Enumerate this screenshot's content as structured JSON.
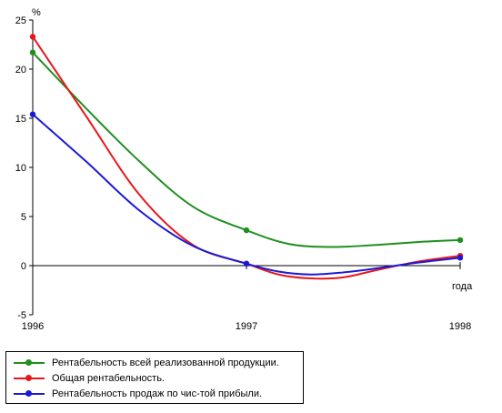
{
  "chart_data": {
    "type": "line",
    "title": "",
    "xlabel": "года",
    "ylabel": "%",
    "x": [
      "1996",
      "1997",
      "1998"
    ],
    "ylim": [
      -5,
      25
    ],
    "yticks": [
      "-5",
      "0",
      "5",
      "10",
      "15",
      "20",
      "25"
    ],
    "grid": false,
    "legend_position": "bottom-left",
    "series": [
      {
        "name": "Рентабельность всей реализованной продукции.",
        "color": "#1f8f1f",
        "values": [
          21.7,
          3.6,
          2.6
        ],
        "curve_x": [
          1996,
          1996.25,
          1996.5,
          1996.75,
          1997,
          1997.2,
          1997.4,
          1997.6,
          1997.8,
          1998
        ],
        "curve_y": [
          21.7,
          16.0,
          10.6,
          6.0,
          3.6,
          2.2,
          1.9,
          2.1,
          2.4,
          2.6
        ]
      },
      {
        "name": "Общая рентабельность.",
        "color": "#e8161b",
        "values": [
          23.3,
          0.2,
          1.0
        ],
        "curve_x": [
          1996,
          1996.25,
          1996.5,
          1996.75,
          1997,
          1997.15,
          1997.3,
          1997.45,
          1997.6,
          1997.8,
          1998
        ],
        "curve_y": [
          23.3,
          15.2,
          7.2,
          2.1,
          0.2,
          -0.9,
          -1.3,
          -1.2,
          -0.5,
          0.4,
          1.0
        ]
      },
      {
        "name": "Рентабельность продаж по чис-той прибыли.",
        "color": "#1a1ad6",
        "values": [
          15.4,
          0.2,
          0.8
        ],
        "curve_x": [
          1996,
          1996.25,
          1996.5,
          1996.75,
          1997,
          1997.15,
          1997.3,
          1997.45,
          1997.6,
          1997.8,
          1998
        ],
        "curve_y": [
          15.4,
          10.6,
          5.6,
          2.0,
          0.2,
          -0.6,
          -0.9,
          -0.7,
          -0.3,
          0.3,
          0.8
        ]
      }
    ]
  }
}
